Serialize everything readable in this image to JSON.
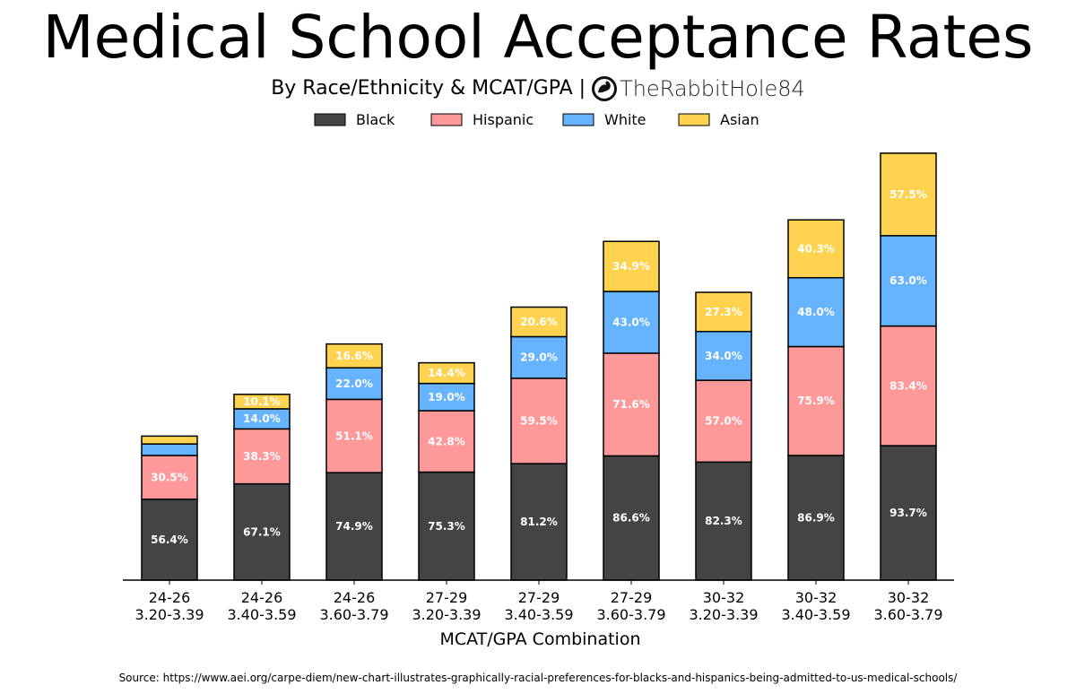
{
  "title": "Medical School Acceptance Rates",
  "subtitle": "By Race/Ethnicity & MCAT/GPA |",
  "brand": "TheRabbitHole84",
  "source": "Source: https://www.aei.org/carpe-diem/new-chart-illustrates-graphically-racial-preferences-for-blacks-and-hispanics-being-admitted-to-us-medical-schools/",
  "chart_data": {
    "type": "bar",
    "stacked": true,
    "title": "Medical School Acceptance Rates",
    "subtitle": "By Race/Ethnicity & MCAT/GPA",
    "xlabel": "MCAT/GPA Combination",
    "ylabel": "",
    "y_axis_visible": false,
    "legend_placement": "top-center",
    "categories": [
      [
        "24-26",
        "3.20-3.39"
      ],
      [
        "24-26",
        "3.40-3.59"
      ],
      [
        "24-26",
        "3.60-3.79"
      ],
      [
        "27-29",
        "3.20-3.39"
      ],
      [
        "27-29",
        "3.40-3.59"
      ],
      [
        "27-29",
        "3.60-3.79"
      ],
      [
        "30-32",
        "3.20-3.39"
      ],
      [
        "30-32",
        "3.40-3.59"
      ],
      [
        "30-32",
        "3.60-3.79"
      ]
    ],
    "series": [
      {
        "name": "Black",
        "color": "#444444",
        "label_color": "#ffffff",
        "values": [
          56.4,
          67.1,
          74.9,
          75.3,
          81.2,
          86.6,
          82.3,
          86.9,
          93.7
        ],
        "labels": [
          "56.4%",
          "67.1%",
          "74.9%",
          "75.3%",
          "81.2%",
          "86.6%",
          "82.3%",
          "86.9%",
          "93.7%"
        ]
      },
      {
        "name": "Hispanic",
        "color": "#ff9999",
        "label_color": "#ffffff",
        "values": [
          30.5,
          38.3,
          51.1,
          42.8,
          59.5,
          71.6,
          57.0,
          75.9,
          83.4
        ],
        "labels": [
          "30.5%",
          "38.3%",
          "51.1%",
          "42.8%",
          "59.5%",
          "71.6%",
          "57.0%",
          "75.9%",
          "83.4%"
        ]
      },
      {
        "name": "White",
        "color": "#66b3ff",
        "label_color": "#ffffff",
        "values": [
          8.0,
          14.0,
          22.0,
          19.0,
          29.0,
          43.0,
          34.0,
          48.0,
          63.0
        ],
        "labels": [
          "",
          "14.0%",
          "22.0%",
          "19.0%",
          "29.0%",
          "43.0%",
          "34.0%",
          "48.0%",
          "63.0%"
        ]
      },
      {
        "name": "Asian",
        "color": "#ffd34f",
        "label_color": "#ffffff",
        "values": [
          5.5,
          10.1,
          16.6,
          14.4,
          20.6,
          34.9,
          27.3,
          40.3,
          57.5
        ],
        "labels": [
          "",
          "10.1%",
          "16.6%",
          "14.4%",
          "20.6%",
          "34.9%",
          "27.3%",
          "40.3%",
          "57.5%"
        ]
      }
    ]
  }
}
